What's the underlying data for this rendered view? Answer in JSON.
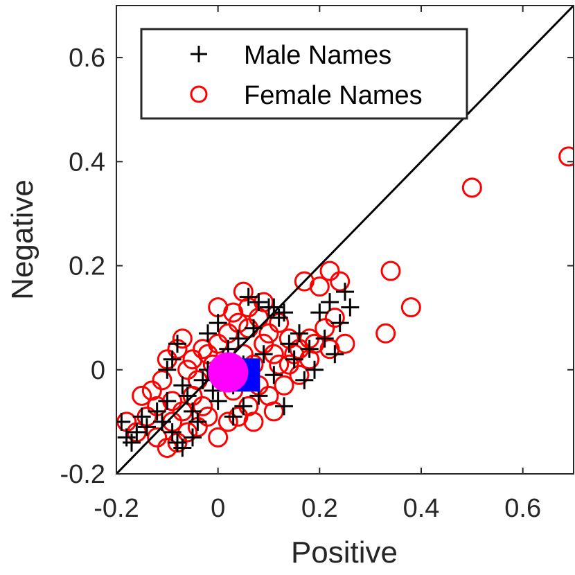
{
  "chart_data": {
    "type": "scatter",
    "xlabel": "Positive",
    "ylabel": "Negative",
    "xlim": [
      -0.2,
      0.7
    ],
    "ylim": [
      -0.2,
      0.7
    ],
    "xticks": [
      "-0.2",
      "0",
      "0.2",
      "0.4",
      "0.6"
    ],
    "yticks": [
      "-0.2",
      "0",
      "0.2",
      "0.4",
      "0.6"
    ],
    "xtick_values": [
      -0.2,
      0,
      0.2,
      0.4,
      0.6
    ],
    "ytick_values": [
      -0.2,
      0,
      0.2,
      0.4,
      0.6
    ],
    "grid": false,
    "legend_position": "top-left",
    "reference_line": {
      "label": "",
      "from": [
        -0.2,
        -0.2
      ],
      "to": [
        0.7,
        0.7
      ],
      "color": "#000000"
    },
    "series": [
      {
        "name": "Male Names",
        "marker": "plus",
        "color": "#000000",
        "points": [
          [
            -0.19,
            -0.1
          ],
          [
            -0.18,
            -0.13
          ],
          [
            -0.17,
            -0.14
          ],
          [
            -0.16,
            -0.12
          ],
          [
            -0.15,
            -0.09
          ],
          [
            -0.14,
            -0.11
          ],
          [
            -0.12,
            -0.08
          ],
          [
            -0.11,
            -0.1
          ],
          [
            -0.1,
            -0.06
          ],
          [
            -0.09,
            -0.12
          ],
          [
            -0.08,
            -0.14
          ],
          [
            -0.07,
            -0.15
          ],
          [
            -0.09,
            0.02
          ],
          [
            -0.08,
            0.05
          ],
          [
            -0.07,
            -0.03
          ],
          [
            -0.06,
            -0.05
          ],
          [
            -0.05,
            -0.08
          ],
          [
            -0.04,
            -0.1
          ],
          [
            -0.03,
            -0.02
          ],
          [
            -0.02,
            0.0
          ],
          [
            -0.01,
            -0.04
          ],
          [
            0.0,
            -0.06
          ],
          [
            0.01,
            0.02
          ],
          [
            0.02,
            0.04
          ],
          [
            0.03,
            -0.03
          ],
          [
            0.04,
            0.06
          ],
          [
            0.05,
            0.01
          ],
          [
            0.06,
            -0.02
          ],
          [
            0.07,
            0.08
          ],
          [
            0.08,
            -0.05
          ],
          [
            0.09,
            0.03
          ],
          [
            0.1,
            0.12
          ],
          [
            0.11,
            -0.01
          ],
          [
            0.12,
            0.1
          ],
          [
            0.13,
            -0.07
          ],
          [
            0.14,
            0.05
          ],
          [
            0.15,
            0.02
          ],
          [
            0.16,
            0.07
          ],
          [
            0.18,
            0.04
          ],
          [
            0.2,
            0.11
          ],
          [
            0.22,
            0.13
          ],
          [
            0.24,
            0.09
          ],
          [
            0.25,
            0.15
          ],
          [
            0.26,
            0.12
          ],
          [
            0.21,
            0.06
          ],
          [
            0.23,
            0.03
          ],
          [
            0.19,
            0.0
          ],
          [
            0.17,
            -0.02
          ],
          [
            0.06,
            0.14
          ],
          [
            0.08,
            0.13
          ],
          [
            0.11,
            0.12
          ],
          [
            0.05,
            -0.07
          ],
          [
            0.03,
            -0.09
          ],
          [
            -0.05,
            -0.13
          ],
          [
            -0.1,
            0.0
          ],
          [
            -0.02,
            0.07
          ],
          [
            0.0,
            0.09
          ],
          [
            0.13,
            0.11
          ]
        ]
      },
      {
        "name": "Female Names",
        "marker": "circle",
        "color": "#ff0000",
        "points": [
          [
            0.69,
            0.41
          ],
          [
            0.5,
            0.35
          ],
          [
            0.34,
            0.19
          ],
          [
            0.38,
            0.12
          ],
          [
            0.33,
            0.07
          ],
          [
            0.22,
            0.19
          ],
          [
            0.24,
            0.17
          ],
          [
            0.2,
            0.16
          ],
          [
            0.17,
            0.17
          ],
          [
            0.25,
            0.05
          ],
          [
            0.22,
            0.04
          ],
          [
            0.05,
            0.15
          ],
          [
            0.0,
            0.12
          ],
          [
            0.23,
            0.1
          ],
          [
            0.21,
            0.08
          ],
          [
            0.18,
            0.06
          ],
          [
            0.15,
            0.03
          ],
          [
            0.12,
            0.01
          ],
          [
            -0.18,
            -0.1
          ],
          [
            -0.16,
            -0.12
          ],
          [
            -0.14,
            -0.09
          ],
          [
            -0.12,
            -0.13
          ],
          [
            -0.1,
            -0.15
          ],
          [
            -0.08,
            -0.14
          ],
          [
            -0.06,
            -0.12
          ],
          [
            -0.04,
            -0.11
          ],
          [
            -0.02,
            -0.09
          ],
          [
            0.0,
            -0.13
          ],
          [
            0.02,
            -0.1
          ],
          [
            0.04,
            -0.09
          ],
          [
            -0.13,
            -0.04
          ],
          [
            -0.11,
            -0.02
          ],
          [
            -0.09,
            -0.06
          ],
          [
            -0.07,
            -0.08
          ],
          [
            -0.05,
            -0.05
          ],
          [
            -0.03,
            -0.07
          ],
          [
            -0.1,
            0.02
          ],
          [
            -0.08,
            0.04
          ],
          [
            -0.06,
            0.0
          ],
          [
            -0.04,
            -0.02
          ],
          [
            -0.02,
            0.03
          ],
          [
            0.0,
            0.05
          ],
          [
            0.02,
            0.07
          ],
          [
            0.04,
            0.09
          ],
          [
            0.06,
            0.08
          ],
          [
            0.08,
            0.1
          ],
          [
            0.1,
            0.07
          ],
          [
            0.12,
            0.09
          ],
          [
            0.14,
            0.06
          ],
          [
            0.16,
            0.04
          ],
          [
            0.18,
            0.02
          ],
          [
            0.13,
            -0.03
          ],
          [
            0.1,
            -0.05
          ],
          [
            0.08,
            -0.03
          ],
          [
            0.06,
            -0.07
          ],
          [
            0.03,
            -0.04
          ],
          [
            0.01,
            -0.01
          ],
          [
            -0.01,
            0.01
          ],
          [
            0.05,
            0.03
          ],
          [
            0.07,
            0.01
          ],
          [
            0.09,
            0.05
          ],
          [
            0.11,
            0.03
          ],
          [
            0.14,
            0.01
          ],
          [
            0.16,
            -0.01
          ],
          [
            0.19,
            0.05
          ],
          [
            -0.12,
            -0.07
          ],
          [
            -0.15,
            -0.05
          ],
          [
            -0.07,
            0.06
          ],
          [
            -0.03,
            0.04
          ],
          [
            0.03,
            0.11
          ],
          [
            0.06,
            0.12
          ],
          [
            0.09,
            0.13
          ],
          [
            0.11,
            -0.08
          ],
          [
            0.07,
            -0.1
          ],
          [
            -0.09,
            -0.1
          ],
          [
            -0.05,
            0.02
          ]
        ]
      },
      {
        "name": "",
        "marker": "square",
        "color": "#0000ff",
        "points": [
          [
            0.05,
            -0.01
          ]
        ]
      },
      {
        "name": "",
        "marker": "filled-circle",
        "color": "#ff00ff",
        "points": [
          [
            0.02,
            -0.005
          ]
        ]
      }
    ]
  }
}
